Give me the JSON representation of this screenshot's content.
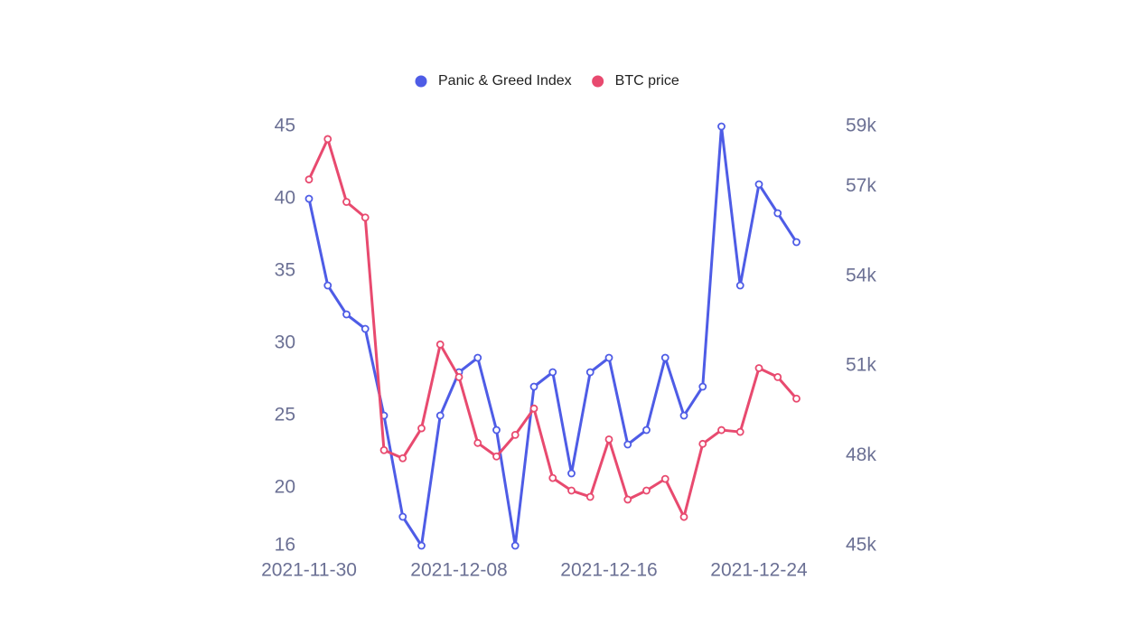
{
  "chart_data": {
    "type": "line",
    "categories": [
      "2021-11-30",
      null,
      null,
      null,
      null,
      null,
      null,
      null,
      "2021-12-08",
      null,
      null,
      null,
      null,
      null,
      null,
      null,
      "2021-12-16",
      null,
      null,
      null,
      null,
      null,
      null,
      null,
      "2021-12-24",
      null,
      null
    ],
    "series": [
      {
        "name": "Panic & Greed Index",
        "color": "#4e5ce6",
        "axis": "y",
        "values": [
          40,
          34,
          32,
          31,
          25,
          18,
          16,
          25,
          28,
          29,
          24,
          16,
          27,
          28,
          21,
          28,
          29,
          23,
          24,
          29,
          25,
          27,
          45,
          34,
          41,
          39,
          37
        ]
      },
      {
        "name": "BTC price",
        "color": "#e84a6f",
        "axis": "y2",
        "values": [
          57230,
          58580,
          56480,
          55960,
          48190,
          47920,
          48920,
          51720,
          50630,
          48430,
          47980,
          48700,
          49580,
          47260,
          46840,
          46630,
          48550,
          46540,
          46840,
          47230,
          45960,
          48400,
          48860,
          48800,
          50930,
          50630,
          49910
        ]
      }
    ],
    "ylim": [
      16,
      45
    ],
    "yticks": [
      16,
      20,
      25,
      30,
      35,
      40,
      45
    ],
    "y2lim": [
      45000,
      59000
    ],
    "y2ticks": [
      {
        "value": 45000,
        "label": "45k"
      },
      {
        "value": 48000,
        "label": "48k"
      },
      {
        "value": 51000,
        "label": "51k"
      },
      {
        "value": 54000,
        "label": "54k"
      },
      {
        "value": 57000,
        "label": "57k"
      },
      {
        "value": 59000,
        "label": "59k"
      }
    ],
    "legend": "top"
  }
}
